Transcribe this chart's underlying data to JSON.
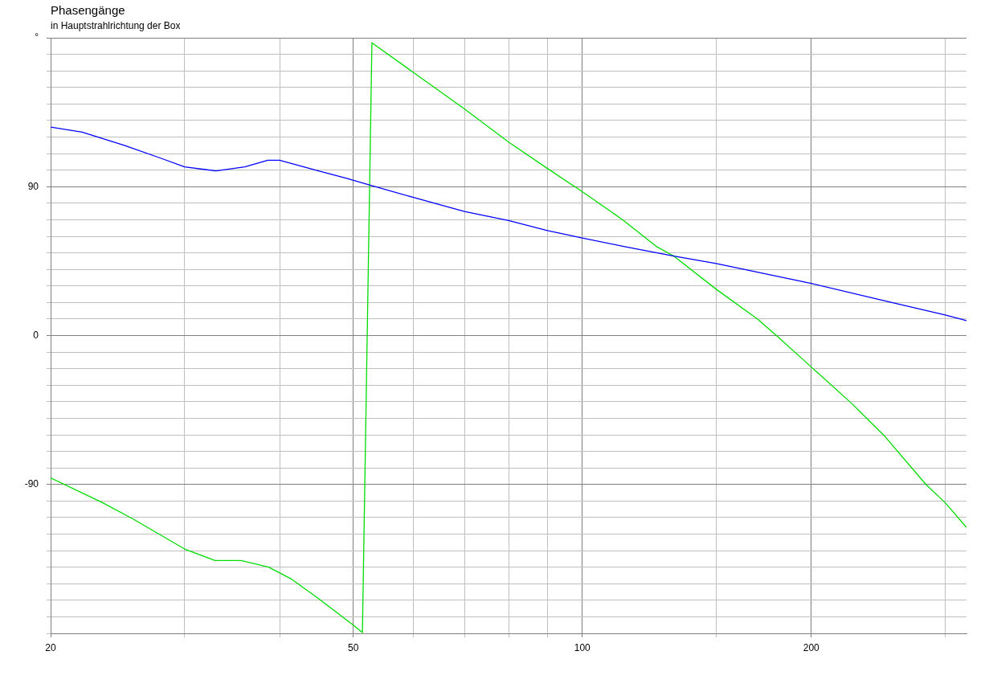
{
  "chart_data": {
    "type": "line",
    "title": "Phasengänge",
    "subtitle": "in Hauptstrahlrichtung der Box",
    "log": "x",
    "grid": true,
    "legend": false,
    "marker": "none",
    "line_style": "solid",
    "xlim": [
      20,
      320
    ],
    "ylim": [
      -180,
      180
    ],
    "xticks": [
      20,
      {
        "value": 30,
        "label": null
      },
      {
        "value": 40,
        "label": null
      },
      50,
      {
        "value": 60,
        "label": null
      },
      {
        "value": 70,
        "label": null
      },
      {
        "value": 80,
        "label": null
      },
      {
        "value": 90,
        "label": null
      },
      100,
      {
        "value": 150,
        "label": null
      },
      200,
      {
        "value": 300,
        "label": null
      }
    ],
    "yticks": [
      {
        "value": -180,
        "label": null
      },
      {
        "value": -170,
        "label": null
      },
      {
        "value": -160,
        "label": null
      },
      {
        "value": -150,
        "label": null
      },
      {
        "value": -140,
        "label": null
      },
      {
        "value": -130,
        "label": null
      },
      {
        "value": -120,
        "label": null
      },
      {
        "value": -110,
        "label": null
      },
      {
        "value": -100,
        "label": null
      },
      -90,
      {
        "value": -80,
        "label": null
      },
      {
        "value": -70,
        "label": null
      },
      {
        "value": -60,
        "label": null
      },
      {
        "value": -50,
        "label": null
      },
      {
        "value": -40,
        "label": null
      },
      {
        "value": -30,
        "label": null
      },
      {
        "value": -20,
        "label": null
      },
      {
        "value": -10,
        "label": null
      },
      0,
      {
        "value": 10,
        "label": null
      },
      {
        "value": 20,
        "label": null
      },
      {
        "value": 30,
        "label": null
      },
      {
        "value": 40,
        "label": null
      },
      {
        "value": 50,
        "label": null
      },
      {
        "value": 60,
        "label": null
      },
      {
        "value": 70,
        "label": null
      },
      {
        "value": 80,
        "label": null
      },
      90,
      {
        "value": 100,
        "label": null
      },
      {
        "value": 110,
        "label": null
      },
      {
        "value": 120,
        "label": null
      },
      {
        "value": 130,
        "label": null
      },
      {
        "value": 140,
        "label": null
      },
      {
        "value": 150,
        "label": null
      },
      {
        "value": 160,
        "label": null
      },
      {
        "value": 170,
        "label": null
      },
      {
        "value": 180,
        "label": "°"
      }
    ],
    "series": [
      {
        "color": "#0000ff",
        "x": [
          20,
          22,
          25,
          28,
          30,
          33,
          36,
          38.6,
          40,
          45,
          49,
          52.5,
          60,
          70,
          80,
          90,
          100,
          113,
          132,
          150,
          200,
          250,
          300,
          320
        ],
        "values": [
          126,
          123,
          115,
          107,
          102,
          99.5,
          102,
          106,
          106,
          99.5,
          95,
          91,
          83.5,
          75,
          69.5,
          63.5,
          59,
          54,
          48,
          43.5,
          31.5,
          21,
          12.5,
          9
        ]
      },
      {
        "color": "#00dd00",
        "x": [
          20,
          23.4,
          25.7,
          30,
          32.9,
          35.6,
          38.7,
          41.4,
          45,
          50,
          51.4,
          52.9,
          60,
          70,
          80,
          90,
          100,
          113,
          125,
          132,
          150,
          170,
          181,
          200,
          226,
          250,
          283,
          300,
          320
        ],
        "values": [
          -86,
          -101,
          -111,
          -129,
          -136,
          -136,
          -140,
          -147,
          -159,
          -175,
          -179.5,
          177,
          159,
          137,
          117,
          101,
          87,
          70,
          54,
          48,
          28,
          10,
          -1,
          -19,
          -41,
          -61,
          -90,
          -101,
          -116
        ]
      }
    ]
  }
}
